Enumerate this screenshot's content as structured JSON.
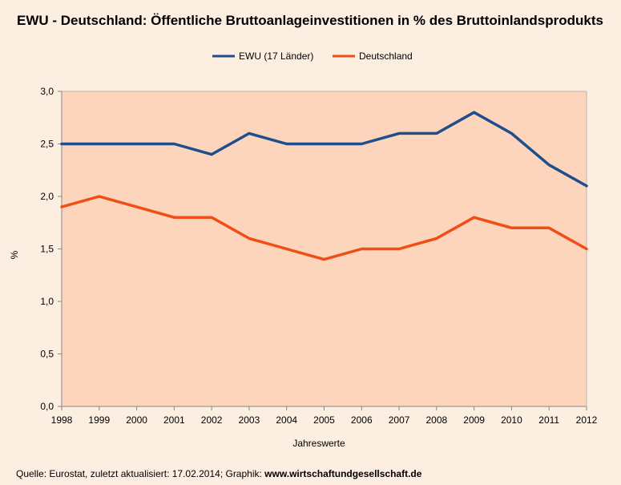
{
  "chart_data": {
    "type": "line",
    "title": "EWU - Deutschland: Öffentliche Bruttoanlageinvestitionen in % des Bruttoinlandsprodukts",
    "xlabel": "Jahreswerte",
    "ylabel": "%",
    "categories": [
      "1998",
      "1999",
      "2000",
      "2001",
      "2002",
      "2003",
      "2004",
      "2005",
      "2006",
      "2007",
      "2008",
      "2009",
      "2010",
      "2011",
      "2012"
    ],
    "series": [
      {
        "name": "EWU (17 Länder)",
        "color": "#1f4e8c",
        "values": [
          2.5,
          2.5,
          2.5,
          2.5,
          2.4,
          2.6,
          2.5,
          2.5,
          2.5,
          2.6,
          2.6,
          2.8,
          2.6,
          2.3,
          2.1
        ]
      },
      {
        "name": "Deutschland",
        "color": "#f04e14",
        "values": [
          1.9,
          2.0,
          1.9,
          1.8,
          1.8,
          1.6,
          1.5,
          1.4,
          1.5,
          1.5,
          1.6,
          1.8,
          1.7,
          1.7,
          1.5
        ]
      }
    ],
    "ylim": [
      0,
      3
    ],
    "yticks": [
      "0,0",
      "0,5",
      "1,0",
      "1,5",
      "2,0",
      "2,5",
      "3,0"
    ],
    "grid": false,
    "legend_position": "top-center",
    "plot_background": "#fdd5bc",
    "page_background": "#fdeee2"
  },
  "footer": {
    "source_prefix": "Quelle: Eurostat, zuletzt aktualisiert: 17.02.2014; Graphik: ",
    "source_link": "www.wirtschaftundgesellschaft.de"
  }
}
